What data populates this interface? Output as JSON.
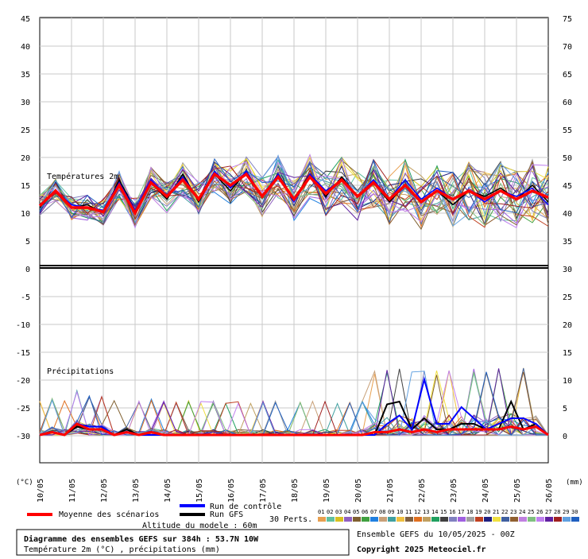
{
  "chart_data": {
    "type": "line",
    "temp_label": "Températures 2m",
    "precip_label": "Précipitations",
    "left_unit_label": "(°C)",
    "right_unit_label": "(mm)",
    "left_axis_ticks": [
      45,
      40,
      35,
      30,
      25,
      20,
      15,
      10,
      5,
      0,
      -5,
      -10,
      -15,
      -20,
      -25,
      -30
    ],
    "right_axis_ticks": [
      75,
      70,
      65,
      60,
      55,
      50,
      45,
      40,
      35,
      30,
      25,
      20,
      15,
      10,
      5,
      0
    ],
    "dates": [
      "10/05",
      "11/05",
      "12/05",
      "13/05",
      "14/05",
      "15/05",
      "16/05",
      "17/05",
      "18/05",
      "19/05",
      "20/05",
      "21/05",
      "22/05",
      "23/05",
      "24/05",
      "25/05",
      "26/05"
    ],
    "legend": {
      "mean": "Moyenne des scénarios",
      "control": "Run de contrôle",
      "gfs": "Run GFS",
      "perts": "30 Perts.",
      "altitude": "Altitude du modele : 60m"
    },
    "pert_labels": [
      "01",
      "02",
      "03",
      "04",
      "05",
      "06",
      "07",
      "08",
      "09",
      "10",
      "11",
      "12",
      "13",
      "14",
      "15",
      "16",
      "17",
      "18",
      "19",
      "20",
      "21",
      "22",
      "23",
      "24",
      "25",
      "26",
      "27",
      "28",
      "29",
      "30"
    ],
    "pert_colors": [
      "#e8a050",
      "#60c0a0",
      "#d8c020",
      "#9060c0",
      "#806030",
      "#40a040",
      "#2080e0",
      "#c8a078",
      "#40a0a0",
      "#f0c040",
      "#806040",
      "#e07020",
      "#c0a060",
      "#20a060",
      "#404040",
      "#8080c0",
      "#a060e0",
      "#a0a0a0",
      "#c04020",
      "#202080",
      "#f0e040",
      "#4060a0",
      "#906030",
      "#c080e0",
      "#80c080",
      "#c080f0",
      "#6020a0",
      "#a02020",
      "#60a0e0",
      "#2060c0"
    ],
    "series_colors": {
      "mean": "#ff0000",
      "control": "#0000ff",
      "gfs": "#000000"
    },
    "temperature": {
      "mean": [
        11.3,
        14,
        11,
        11,
        10.2,
        15,
        10,
        15.5,
        13,
        16,
        12.5,
        17,
        15,
        17,
        13,
        16.5,
        12.5,
        16.5,
        13.5,
        16,
        13,
        15.5,
        12.5,
        15,
        12,
        14,
        12.5,
        14,
        12.5,
        14,
        12.5,
        14,
        12.8
      ],
      "control": [
        11.5,
        14,
        11.5,
        11,
        10.5,
        15.5,
        10.5,
        16,
        13,
        16.5,
        12.5,
        17.5,
        14.5,
        17.5,
        13,
        17,
        12,
        17,
        14,
        16,
        13,
        16,
        12.5,
        16,
        12.5,
        14.5,
        12.5,
        14,
        12,
        14,
        13,
        14.5,
        11.5
      ],
      "gfs": [
        11,
        14,
        11,
        11.5,
        10,
        16,
        10.5,
        15.5,
        12.5,
        17,
        12,
        17,
        14,
        17.5,
        13,
        17,
        12.5,
        17,
        13,
        16.5,
        13,
        15.5,
        12,
        15,
        12,
        14,
        11.5,
        14,
        13,
        14.5,
        12.5,
        15,
        12
      ]
    },
    "precipitation": {
      "mean": [
        0,
        0.5,
        0,
        2,
        1,
        1,
        0,
        0.5,
        0,
        0.5,
        0,
        0,
        0,
        0,
        0,
        0,
        0,
        0,
        0,
        0,
        0,
        0,
        0,
        0,
        0,
        0,
        0,
        0.5,
        0.5,
        1,
        0.5,
        1,
        0.5,
        1,
        1,
        1,
        1,
        1,
        1.5,
        1,
        1.5,
        0
      ],
      "control": [
        0,
        0.5,
        0,
        2,
        1.5,
        1.5,
        0,
        0.5,
        0,
        0,
        0,
        0,
        0,
        0,
        0,
        0,
        0,
        0,
        0,
        0,
        0,
        0,
        0,
        0,
        0,
        0,
        0,
        0,
        2,
        3.5,
        1,
        10,
        2,
        2,
        5,
        3,
        1,
        2,
        3,
        3,
        2,
        0
      ],
      "gfs": [
        0,
        0.5,
        0,
        1.5,
        1,
        1,
        0,
        1,
        0,
        0,
        0,
        0,
        0,
        0,
        0,
        0,
        0,
        0,
        0,
        0,
        0,
        0,
        0,
        0,
        0,
        0,
        0,
        0,
        5.5,
        6,
        1,
        3,
        1,
        1,
        2,
        2,
        1,
        1,
        6,
        1,
        2,
        0
      ]
    }
  },
  "title_box": {
    "line1": "Diagramme des ensembles GEFS sur 384h : 53.7N 10W",
    "line2": "Température 2m (°C) , précipitations (mm)"
  },
  "credits": {
    "run": "Ensemble GEFS du 10/05/2025 - 00Z",
    "copyright": "Copyright 2025 Meteociel.fr"
  }
}
